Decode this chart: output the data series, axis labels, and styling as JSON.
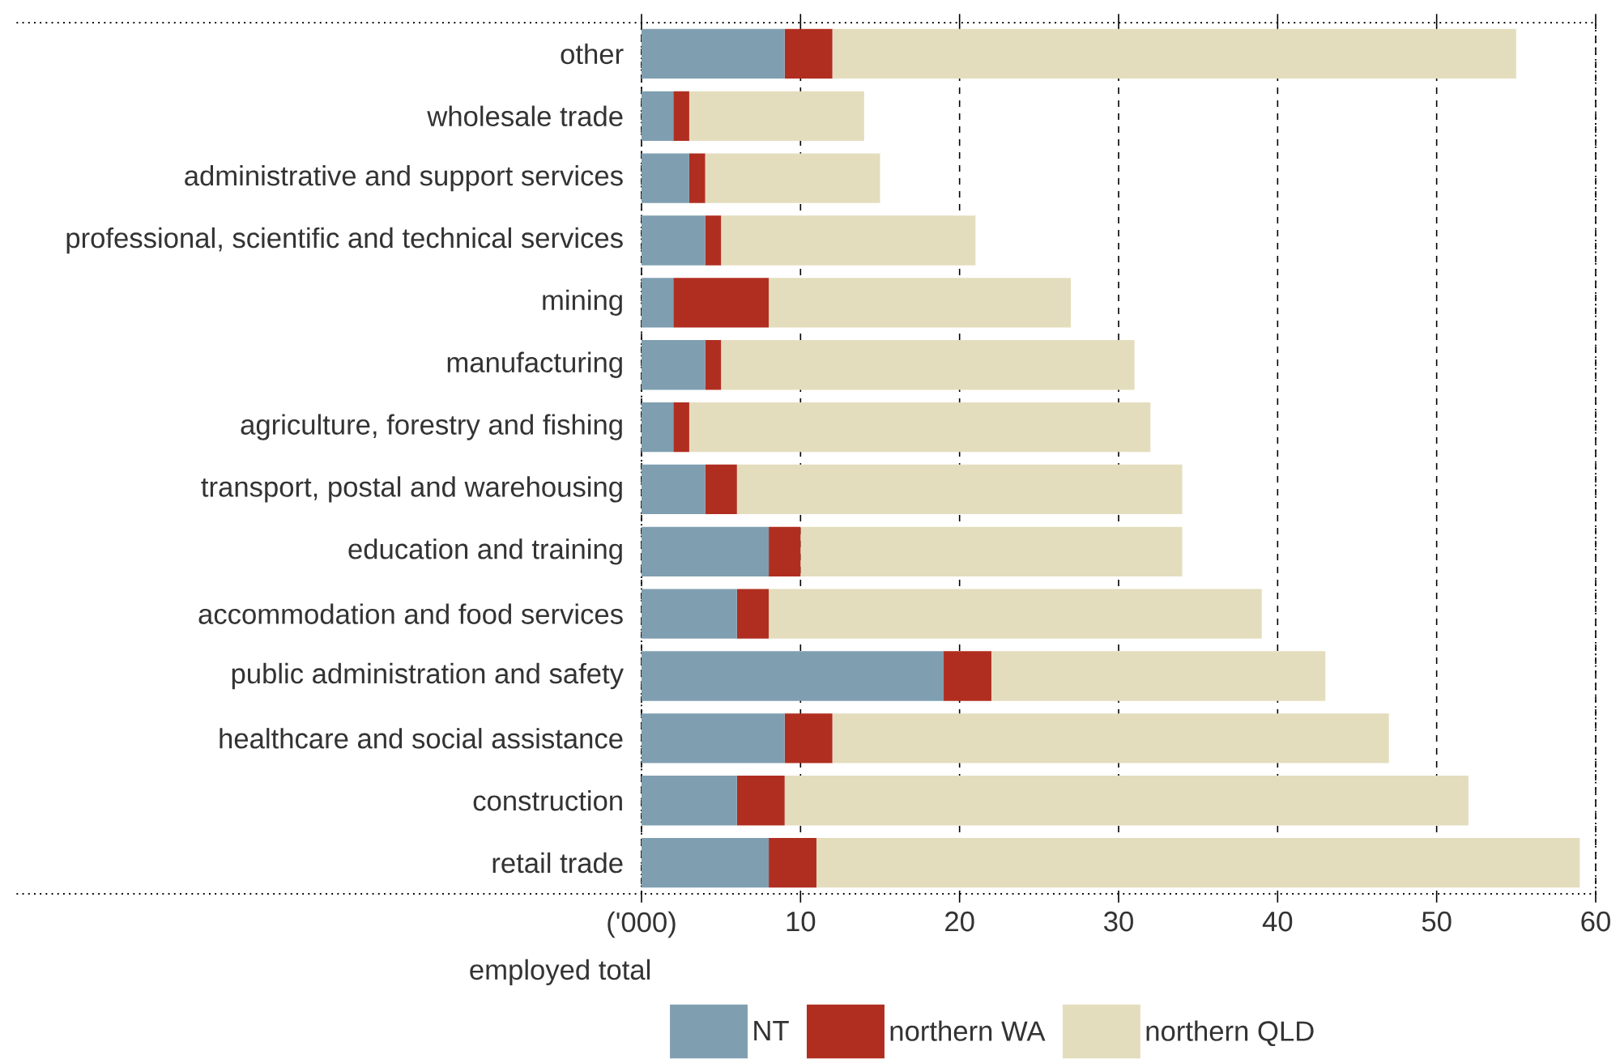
{
  "chart_data": {
    "type": "bar",
    "orientation": "horizontal",
    "stacked": true,
    "categories": [
      "other",
      "wholesale trade",
      "administrative and support services",
      "professional, scientific and technical services",
      "mining",
      "manufacturing",
      "agriculture, forestry and fishing",
      "transport, postal and warehousing",
      "education and training",
      "accommodation and food services",
      "public administration and safety",
      "healthcare and social assistance",
      "construction",
      "retail trade"
    ],
    "series": [
      {
        "name": "NT",
        "color": "#7f9fb1",
        "values": [
          9,
          2,
          3,
          4,
          2,
          4,
          2,
          4,
          8,
          6,
          19,
          9,
          6,
          8
        ]
      },
      {
        "name": "northern WA",
        "color": "#b02e20",
        "values": [
          3,
          1,
          1,
          1,
          6,
          1,
          1,
          2,
          2,
          2,
          3,
          3,
          3,
          3
        ]
      },
      {
        "name": "northern QLD",
        "color": "#e4ddbd",
        "values": [
          43,
          11,
          11,
          16,
          19,
          26,
          29,
          28,
          24,
          31,
          21,
          35,
          43,
          48
        ]
      }
    ],
    "xlabel": "employed total",
    "xlim": [
      0,
      60
    ],
    "xticks": [
      {
        "value": 0,
        "label": "('000)"
      },
      10,
      20,
      30,
      40,
      50,
      60
    ],
    "grid": "x",
    "legend": "bottom"
  }
}
